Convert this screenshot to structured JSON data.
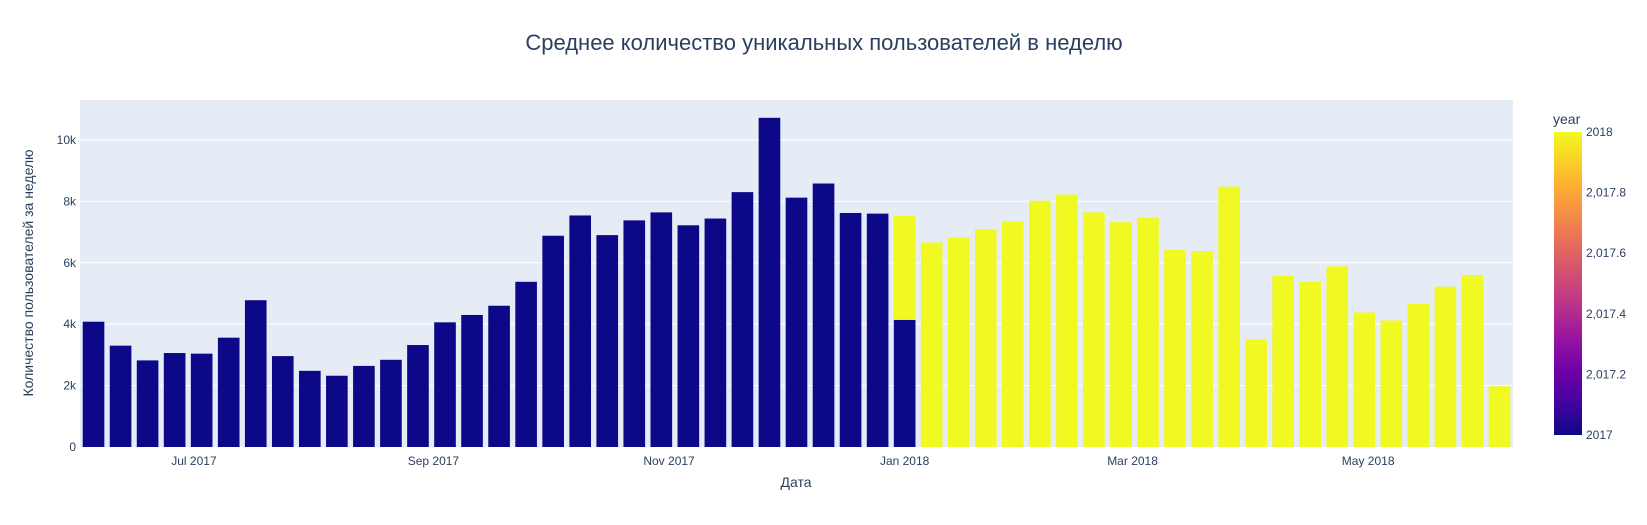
{
  "chart_data": {
    "type": "bar",
    "title": "Среднее количество уникальных пользователей в неделю",
    "xlabel": "Дата",
    "ylabel": "Количество пользователей за неделю",
    "ylim": [
      0,
      11300
    ],
    "y_ticks": [
      0,
      2000,
      4000,
      6000,
      8000,
      10000
    ],
    "y_tick_labels": [
      "0",
      "2k",
      "4k",
      "6k",
      "8k",
      "10k"
    ],
    "x_tick_labels": [
      "Jul 2017",
      "Sep 2017",
      "Nov 2017",
      "Jan 2018",
      "Mar 2018",
      "May 2018"
    ],
    "colors": {
      "2017": "#0d0887",
      "2018": "#f0f921",
      "plot_bg": "#e5ecf6",
      "grid": "#ffffff",
      "text": "#2a3f5f"
    },
    "series": [
      {
        "name": "2017",
        "values": [
          4080,
          3300,
          2820,
          3060,
          3040,
          3560,
          4780,
          2960,
          2480,
          2320,
          2640,
          2840,
          3320,
          4060,
          4300,
          4600,
          5380,
          6880,
          7540,
          6900,
          7380,
          7640,
          7220,
          7440,
          8300,
          10720,
          8120,
          8580,
          7620,
          7600,
          4140,
          0,
          0,
          0,
          0,
          0,
          0,
          0,
          0,
          0,
          0,
          0,
          0,
          0,
          0,
          0,
          0,
          0,
          0,
          0,
          0,
          0,
          0
        ]
      },
      {
        "name": "2018",
        "values": [
          0,
          0,
          0,
          0,
          0,
          0,
          0,
          0,
          0,
          0,
          0,
          0,
          0,
          0,
          0,
          0,
          0,
          0,
          0,
          0,
          0,
          0,
          0,
          0,
          0,
          0,
          0,
          0,
          0,
          0,
          3380,
          6660,
          6820,
          7100,
          7340,
          8020,
          8220,
          7640,
          7320,
          7460,
          6420,
          6380,
          8480,
          3500,
          5580,
          5380,
          5880,
          4380,
          4120,
          4660,
          5220,
          5600,
          1980
        ]
      }
    ],
    "colorbar": {
      "title": "year",
      "min": 2017,
      "max": 2018,
      "ticks": [
        2017,
        2017.2,
        2017.4,
        2017.6,
        2017.8,
        2018
      ],
      "tick_labels": [
        "2017",
        "2,017.2",
        "2,017.4",
        "2,017.6",
        "2,017.8",
        "2018"
      ]
    }
  }
}
